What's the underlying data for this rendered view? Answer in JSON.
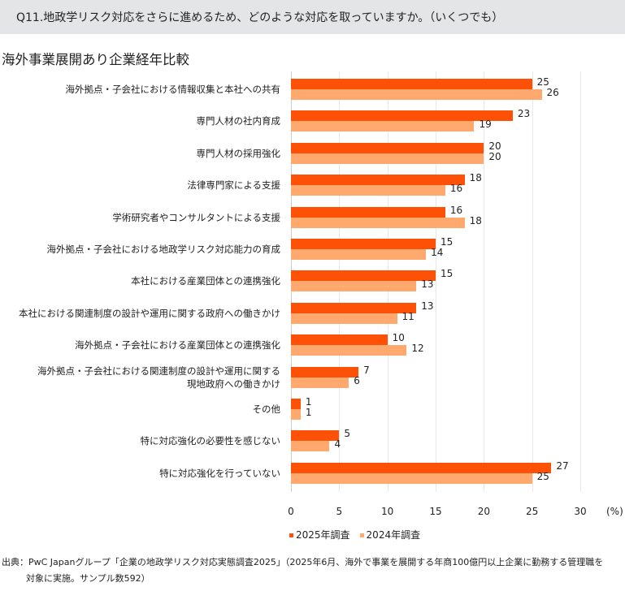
{
  "header": {
    "question": "Q11.地政学リスク対応をさらに進めるため、どのような対応を取っていますか。（いくつでも）"
  },
  "subtitle": "海外事業展開あり企業経年比較",
  "chart_data": {
    "type": "bar",
    "orientation": "horizontal",
    "title": "海外事業展開あり企業経年比較",
    "categories": [
      "海外拠点・子会社における情報収集と本社への共有",
      "専門人材の社内育成",
      "専門人材の採用強化",
      "法律専門家による支援",
      "学術研究者やコンサルタントによる支援",
      "海外拠点・子会社における地政学リスク対応能力の育成",
      "本社における産業団体との連携強化",
      "本社における関連制度の設計や運用に関する政府への働きかけ",
      "海外拠点・子会社における産業団体との連携強化",
      "海外拠点・子会社における関連制度の設計や運用に関する\n現地政府への働きかけ",
      "その他",
      "特に対応強化の必要性を感じない",
      "特に対応強化を行っていない"
    ],
    "series": [
      {
        "name": "2025年調査",
        "color": "#fd5108",
        "values": [
          25,
          23,
          20,
          18,
          16,
          15,
          15,
          13,
          10,
          7,
          1,
          5,
          27
        ]
      },
      {
        "name": "2024年調査",
        "color": "#ffa96f",
        "values": [
          26,
          19,
          20,
          16,
          18,
          14,
          13,
          11,
          12,
          6,
          1,
          4,
          25
        ]
      }
    ],
    "xticks": [
      "0",
      "5",
      "10",
      "15",
      "20",
      "25",
      "30"
    ],
    "xlim": [
      0,
      30
    ],
    "xunit": "(%)",
    "legend": "bottom"
  },
  "source": {
    "line1": "出典：PwC Japanグループ「企業の地政学リスク対応実態調査2025」（2025年6月、海外で事業を展開する年商100億円以上企業に勤務する管理職を",
    "line2": "対象に実施。サンプル数592）"
  }
}
